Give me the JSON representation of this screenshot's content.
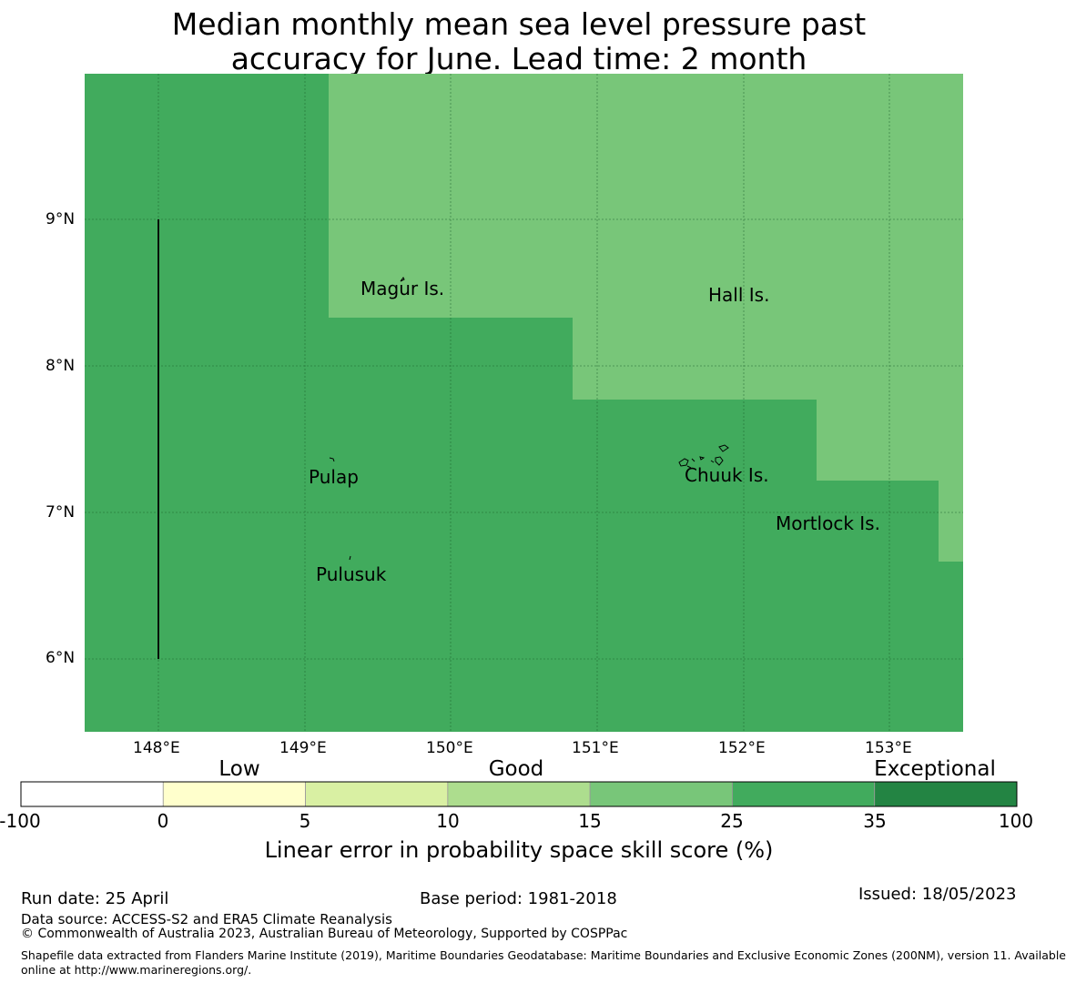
{
  "title_line1": "Median monthly mean sea level pressure past",
  "title_line2": "accuracy for June. Lead time: 2 month",
  "map": {
    "lon_ticks": [
      "148°E",
      "149°E",
      "150°E",
      "151°E",
      "152°E",
      "153°E"
    ],
    "lat_ticks": [
      "9°N",
      "8°N",
      "7°N",
      "6°N"
    ],
    "places": [
      "Magur Is.",
      "Hall Is.",
      "Pulap",
      "Chuuk Is.",
      "Mortlock Is.",
      "Pulusuk"
    ],
    "colors": {
      "dark_green": "#41ab5d",
      "light_green": "#78c679"
    }
  },
  "colorbar": {
    "categories": [
      "Low",
      "Good",
      "Exceptional"
    ],
    "ticks": [
      "-100",
      "0",
      "5",
      "10",
      "15",
      "25",
      "35",
      "100"
    ],
    "colors": [
      "#ffffff",
      "#ffffcc",
      "#d9f0a3",
      "#addd8e",
      "#78c679",
      "#41ab5d",
      "#238443"
    ],
    "label": "Linear error in probability space skill score (%)"
  },
  "footer": {
    "run_date": "Run date: 25 April",
    "base_period": "Base period: 1981-2018",
    "issued": "Issued: 18/05/2023",
    "data_source": "Data source: ACCESS-S2 and ERA5 Climate Reanalysis",
    "copyright": "© Commonwealth of Australia 2023, Australian Bureau of Meteorology, Supported by COSPPac",
    "shapefile_line1": "Shapefile data extracted from Flanders Marine Institute (2019), Maritime Boundaries Geodatabase: Maritime Boundaries and Exclusive Economic Zones (200NM), version 11. Available",
    "shapefile_line2": "online at http://www.marineregions.org/."
  }
}
